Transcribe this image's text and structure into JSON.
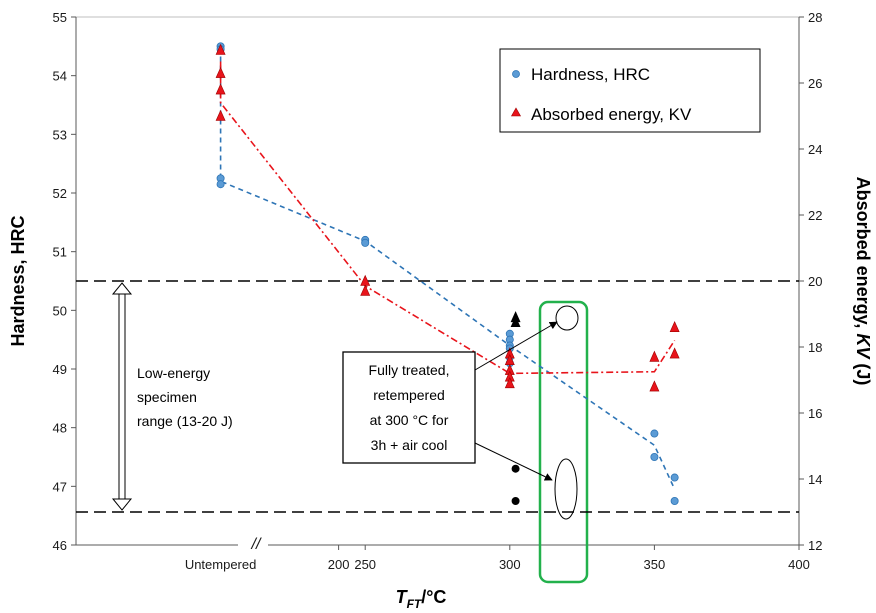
{
  "chart_data": {
    "type": "scatter",
    "x_axis": {
      "range": [
        150,
        400
      ],
      "ticks": [
        {
          "value": 200,
          "label": "200"
        },
        {
          "value": 250,
          "label": "250"
        },
        {
          "value": 300,
          "label": "300"
        },
        {
          "value": 350,
          "label": "350"
        },
        {
          "value": 400,
          "label": "400"
        }
      ],
      "special_tick": {
        "value": 200,
        "label": "Untempered"
      },
      "break_mark": "//",
      "title_main": "T",
      "title_sub": "FT",
      "title_suffix": "/°C"
    },
    "y_left": {
      "range": [
        46,
        55
      ],
      "ticks": [
        46,
        47,
        48,
        49,
        50,
        51,
        52,
        53,
        54,
        55
      ],
      "title": "Hardness, HRC"
    },
    "y_right": {
      "range": [
        12,
        28
      ],
      "ticks": [
        12,
        14,
        16,
        18,
        20,
        22,
        24,
        26,
        28
      ],
      "title_prefix": "Absorbed energy, ",
      "title_italic": "KV",
      "title_suffix": " (J)"
    },
    "series": [
      {
        "name": "Hardness, HRC",
        "axis": "left",
        "marker": "circle",
        "color": "#5b9bd5",
        "trend_color": "#2e75b6",
        "trend_style": "dashed",
        "points": [
          {
            "x": "Untempered",
            "y": 54.5
          },
          {
            "x": "Untempered",
            "y": 54.45
          },
          {
            "x": 200,
            "y": 52.25
          },
          {
            "x": 200,
            "y": 52.15
          },
          {
            "x": 250,
            "y": 51.2
          },
          {
            "x": 250,
            "y": 51.15
          },
          {
            "x": 300,
            "y": 49.6
          },
          {
            "x": 300,
            "y": 49.5
          },
          {
            "x": 300,
            "y": 49.4
          },
          {
            "x": 300,
            "y": 49.35
          },
          {
            "x": 300,
            "y": 49.2
          },
          {
            "x": 300,
            "y": 49.1
          },
          {
            "x": 350,
            "y": 47.9
          },
          {
            "x": 350,
            "y": 47.5
          },
          {
            "x": 357,
            "y": 47.15
          },
          {
            "x": 357,
            "y": 46.75
          }
        ],
        "trend": [
          {
            "x": "Untempered",
            "y": 54.48
          },
          {
            "x": 200,
            "y": 52.2
          },
          {
            "x": 250,
            "y": 51.18
          },
          {
            "x": 300,
            "y": 49.4
          },
          {
            "x": 350,
            "y": 47.7
          },
          {
            "x": 357,
            "y": 46.95
          }
        ]
      },
      {
        "name": "Absorbed energy, KV",
        "axis": "right",
        "marker": "triangle",
        "color": "#e8141b",
        "trend_color": "#e8141b",
        "trend_style": "dash-dot",
        "points": [
          {
            "x": "Untempered",
            "y": 27.0
          },
          {
            "x": "Untempered",
            "y": 26.3
          },
          {
            "x": 200,
            "y": 25.8
          },
          {
            "x": 200,
            "y": 25.0
          },
          {
            "x": 250,
            "y": 20.0
          },
          {
            "x": 250,
            "y": 19.7
          },
          {
            "x": 300,
            "y": 17.8
          },
          {
            "x": 300,
            "y": 17.6
          },
          {
            "x": 300,
            "y": 17.3
          },
          {
            "x": 300,
            "y": 17.1
          },
          {
            "x": 300,
            "y": 16.9
          },
          {
            "x": 350,
            "y": 17.7
          },
          {
            "x": 350,
            "y": 16.8
          },
          {
            "x": 357,
            "y": 18.6
          },
          {
            "x": 357,
            "y": 17.8
          }
        ],
        "trend": [
          {
            "x": "Untempered",
            "y": 26.65
          },
          {
            "x": 200,
            "y": 25.4
          },
          {
            "x": 250,
            "y": 19.85
          },
          {
            "x": 300,
            "y": 17.2
          },
          {
            "x": 350,
            "y": 17.25
          },
          {
            "x": 357,
            "y": 18.2
          }
        ]
      },
      {
        "name": "Fully treated, retempered at 300 °C for 3h + air cool (KV)",
        "axis": "right",
        "marker": "triangle",
        "color": "#000000",
        "points": [
          {
            "x": 302,
            "y": 18.9
          },
          {
            "x": 302,
            "y": 18.75
          }
        ]
      },
      {
        "name": "Fully treated, retempered at 300 °C for 3h + air cool (HRC)",
        "axis": "left",
        "marker": "circle",
        "color": "#000000",
        "points": [
          {
            "x": 302,
            "y": 47.3
          },
          {
            "x": 302,
            "y": 46.75
          }
        ]
      }
    ],
    "reference_lines": {
      "axis": "right",
      "values": [
        20,
        13
      ],
      "style": "dashed",
      "color": "#000000"
    },
    "range_annotation": {
      "from": 20,
      "to": 13,
      "axis": "right",
      "lines": [
        "Low-energy",
        "specimen",
        "range (13-20 J)"
      ]
    },
    "callout": {
      "lines": [
        "Fully treated,",
        "retempered",
        "at 300 °C for",
        "3h + air cool"
      ]
    },
    "highlight_box": {
      "x": 300,
      "color": "#22b14c"
    },
    "legend": {
      "position": "top-right"
    },
    "grid": false
  }
}
